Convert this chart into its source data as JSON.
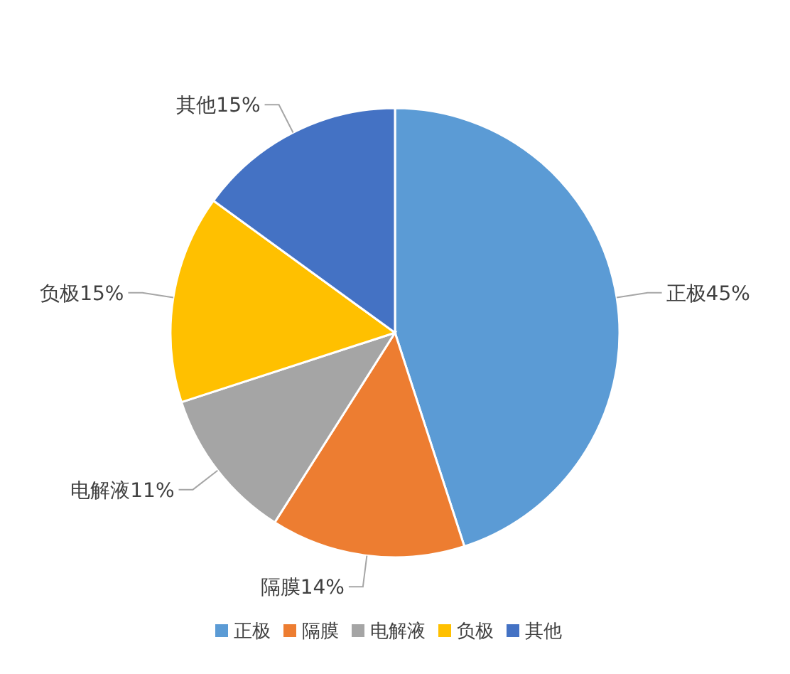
{
  "chart_data": {
    "type": "pie",
    "categories": [
      "正极",
      "隔膜",
      "电解液",
      "负极",
      "其他"
    ],
    "values": [
      45,
      14,
      11,
      15,
      15
    ],
    "colors": [
      "#5b9bd5",
      "#ed7d31",
      "#a5a5a5",
      "#ffc000",
      "#4472c4"
    ],
    "value_labels": [
      "正极45%",
      "隔膜14%",
      "电解液11%",
      "负极15%",
      "其他15%"
    ],
    "legend": "bottom"
  }
}
